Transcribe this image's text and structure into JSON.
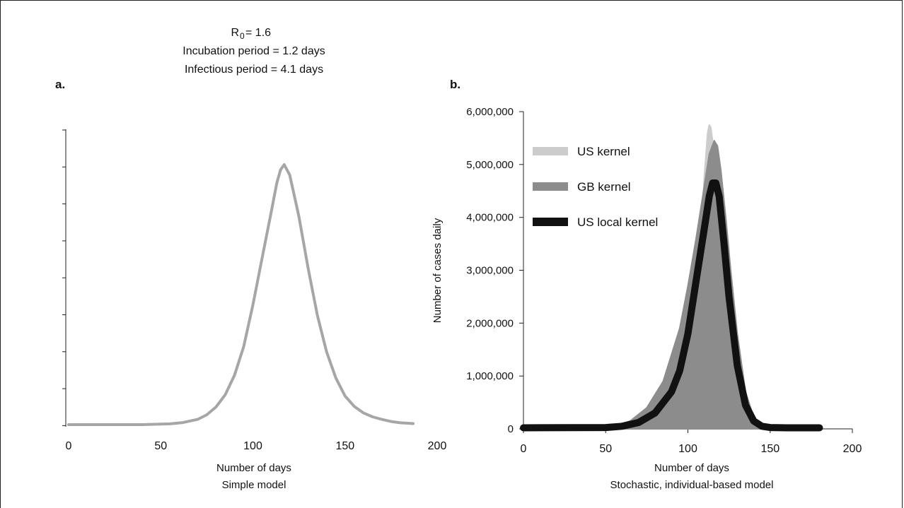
{
  "header": {
    "r0_symbol": "R",
    "r0_sub": "0",
    "r0_value": "= 1.6",
    "incubation": "Incubation period = 1.2 days",
    "infectious": "Infectious period = 4.1 days"
  },
  "chart_data": [
    {
      "type": "line",
      "panel_label": "a.",
      "subtitle": "Simple  model",
      "xlabel": "Number of days",
      "ylabel": "",
      "xlim": [
        0,
        200
      ],
      "xticks": [
        "0",
        "50",
        "100",
        "150",
        "200"
      ],
      "y_ticks_unlabeled": 9,
      "series": [
        {
          "color": "#a6a6a6",
          "x": [
            0,
            20,
            40,
            55,
            62,
            70,
            75,
            80,
            85,
            90,
            95,
            100,
            105,
            110,
            113,
            115,
            117,
            120,
            125,
            130,
            135,
            140,
            145,
            150,
            155,
            160,
            165,
            170,
            175,
            180,
            187
          ],
          "y": [
            0.0,
            0.0,
            0.0,
            0.003,
            0.008,
            0.02,
            0.038,
            0.068,
            0.115,
            0.19,
            0.3,
            0.46,
            0.64,
            0.82,
            0.93,
            0.98,
            1.0,
            0.96,
            0.8,
            0.6,
            0.42,
            0.28,
            0.18,
            0.11,
            0.07,
            0.045,
            0.03,
            0.02,
            0.012,
            0.007,
            0.004
          ]
        }
      ]
    },
    {
      "type": "line",
      "panel_label": "b.",
      "subtitle": "Stochastic, individual-based model",
      "xlabel": "Number of days",
      "ylabel": "Number of cases daily",
      "xlim": [
        0,
        200
      ],
      "ylim": [
        0,
        6000000
      ],
      "xticks": [
        "0",
        "50",
        "100",
        "150",
        "200"
      ],
      "yticks": [
        "0",
        "1,000,000",
        "2,000,000",
        "3,000,000",
        "4,000,000",
        "5,000,000",
        "6,000,000"
      ],
      "legend": [
        "US kernel",
        "GB kernel",
        "US local kernel"
      ],
      "series": [
        {
          "name": "US kernel",
          "color": "#cccccc",
          "x": [
            0,
            60,
            80,
            90,
            95,
            100,
            104,
            108,
            110,
            112,
            113,
            114,
            116,
            118,
            120,
            122,
            125,
            130,
            135,
            140,
            145,
            150,
            160,
            180
          ],
          "y": [
            20000,
            20000,
            30000,
            60000,
            150000,
            700000,
            1900000,
            3700000,
            4800000,
            5600000,
            5750000,
            5700000,
            5200000,
            4200000,
            3100000,
            2200000,
            1200000,
            400000,
            100000,
            30000,
            20000,
            20000,
            20000,
            20000
          ]
        },
        {
          "name": "GB kernel",
          "color": "#8c8c8c",
          "x": [
            0,
            40,
            55,
            65,
            75,
            85,
            95,
            100,
            105,
            110,
            113,
            116,
            118,
            120,
            123,
            126,
            130,
            135,
            140,
            145,
            150,
            160,
            180
          ],
          "y": [
            20000,
            25000,
            50000,
            150000,
            400000,
            900000,
            1900000,
            2700000,
            3600000,
            4600000,
            5200000,
            5450000,
            5350000,
            4900000,
            4000000,
            3000000,
            1800000,
            700000,
            220000,
            70000,
            30000,
            20000,
            20000
          ]
        },
        {
          "name": "US local kernel",
          "color": "#111111",
          "x": [
            0,
            50,
            60,
            70,
            80,
            90,
            95,
            100,
            105,
            110,
            113,
            115,
            117,
            119,
            122,
            125,
            130,
            135,
            140,
            145,
            150,
            160,
            180
          ],
          "y": [
            20000,
            25000,
            50000,
            120000,
            300000,
            700000,
            1100000,
            1800000,
            2800000,
            3800000,
            4400000,
            4650000,
            4650000,
            4400000,
            3500000,
            2500000,
            1200000,
            450000,
            150000,
            50000,
            25000,
            20000,
            20000
          ]
        }
      ]
    }
  ]
}
